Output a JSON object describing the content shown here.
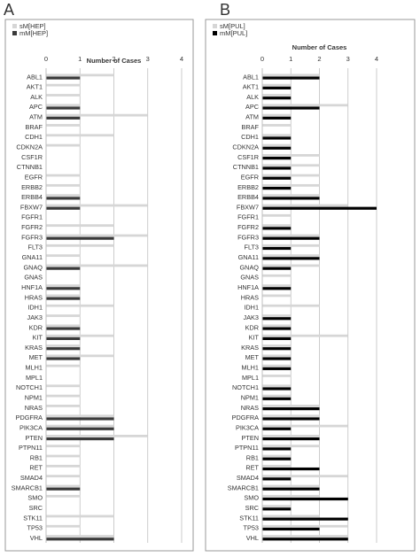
{
  "panel_labels": [
    "A",
    "B"
  ],
  "colors": {
    "series_s": "#d6d6d6",
    "series_m": "#000000",
    "series_m_panel_a": "#3a3a3a",
    "grid": "#bfbfbf",
    "frame": "#9a9a9a",
    "text": "#333333"
  },
  "chart_data": [
    {
      "type": "bar",
      "orientation": "horizontal",
      "title": "Number of Cases",
      "xlim": [
        0,
        4
      ],
      "xticks": [
        "0",
        "1",
        "2",
        "3",
        "4"
      ],
      "grid": true,
      "legend_placement": "top-left",
      "categories": [
        "ABL1",
        "AKT1",
        "ALK",
        "APC",
        "ATM",
        "BRAF",
        "CDH1",
        "CDKN2A",
        "CSF1R",
        "CTNNB1",
        "EGFR",
        "ERBB2",
        "ERBB4",
        "FBXW7",
        "FGFR1",
        "FGFR2",
        "FGFR3",
        "FLT3",
        "GNA11",
        "GNAQ",
        "GNAS",
        "HNF1A",
        "HRAS",
        "IDH1",
        "JAK3",
        "KDR",
        "KIT",
        "KRAS",
        "MET",
        "MLH1",
        "MPL1",
        "NOTCH1",
        "NPM1",
        "NRAS",
        "PDGFRA",
        "PIK3CA",
        "PTEN",
        "PTPN11",
        "RB1",
        "RET",
        "SMAD4",
        "SMARCB1",
        "SMO",
        "SRC",
        "STK11",
        "TP53",
        "VHL"
      ],
      "series": [
        {
          "name": "sM[HEP]",
          "values": [
            2,
            1,
            1,
            1,
            3,
            1,
            2,
            1,
            0,
            0,
            1,
            1,
            1,
            3,
            0,
            2,
            3,
            2,
            1,
            3,
            0,
            1,
            1,
            2,
            1,
            1,
            2,
            1,
            2,
            1,
            0,
            1,
            1,
            1,
            2,
            2,
            3,
            1,
            1,
            1,
            1,
            1,
            1,
            0,
            2,
            1,
            2
          ]
        },
        {
          "name": "mM[HEP]",
          "values": [
            1,
            0,
            0,
            1,
            1,
            0,
            0,
            0,
            0,
            0,
            0,
            0,
            1,
            1,
            0,
            0,
            2,
            0,
            0,
            1,
            0,
            1,
            1,
            0,
            0,
            1,
            1,
            1,
            1,
            0,
            0,
            0,
            0,
            0,
            2,
            2,
            2,
            0,
            0,
            0,
            0,
            1,
            0,
            0,
            0,
            0,
            2
          ]
        }
      ]
    },
    {
      "type": "bar",
      "orientation": "horizontal",
      "title": "Number of Cases",
      "xlim": [
        0,
        4
      ],
      "xticks": [
        "0",
        "1",
        "2",
        "3",
        "4"
      ],
      "grid": true,
      "legend_placement": "top-left",
      "categories": [
        "ABL1",
        "AKT1",
        "ALK",
        "APC",
        "ATM",
        "BRAF",
        "CDH1",
        "CDKN2A",
        "CSF1R",
        "CTNNB1",
        "EGFR",
        "ERBB2",
        "ERBB4",
        "FBXW7",
        "FGFR1",
        "FGFR2",
        "FGFR3",
        "FLT3",
        "GNA11",
        "GNAQ",
        "GNAS",
        "HNF1A",
        "HRAS",
        "IDH1",
        "JAK3",
        "KDR",
        "KIT",
        "KRAS",
        "MET",
        "MLH1",
        "MPL1",
        "NOTCH1",
        "NPM1",
        "NRAS",
        "PDGFRA",
        "PIK3CA",
        "PTEN",
        "PTPN11",
        "RB1",
        "RET",
        "SMAD4",
        "SMARCB1",
        "SMO",
        "SRC",
        "STK11",
        "TP53",
        "VHL"
      ],
      "series": [
        {
          "name": "sM[PUL]",
          "values": [
            2,
            1,
            1,
            3,
            1,
            1,
            1,
            1,
            2,
            2,
            2,
            2,
            2,
            3,
            1,
            1,
            2,
            2,
            2,
            2,
            1,
            1,
            1,
            2,
            1,
            1,
            3,
            1,
            1,
            1,
            1,
            1,
            1,
            2,
            2,
            3,
            2,
            2,
            1,
            1,
            3,
            2,
            2,
            1,
            2,
            3,
            3
          ]
        },
        {
          "name": "mM[PUL]",
          "values": [
            2,
            1,
            1,
            2,
            1,
            0,
            1,
            1,
            1,
            1,
            1,
            1,
            2,
            4,
            0,
            1,
            2,
            1,
            2,
            1,
            0,
            1,
            0,
            0,
            1,
            1,
            1,
            1,
            1,
            1,
            0,
            1,
            1,
            2,
            2,
            1,
            2,
            1,
            1,
            2,
            1,
            2,
            3,
            1,
            3,
            2,
            3
          ]
        }
      ]
    }
  ]
}
